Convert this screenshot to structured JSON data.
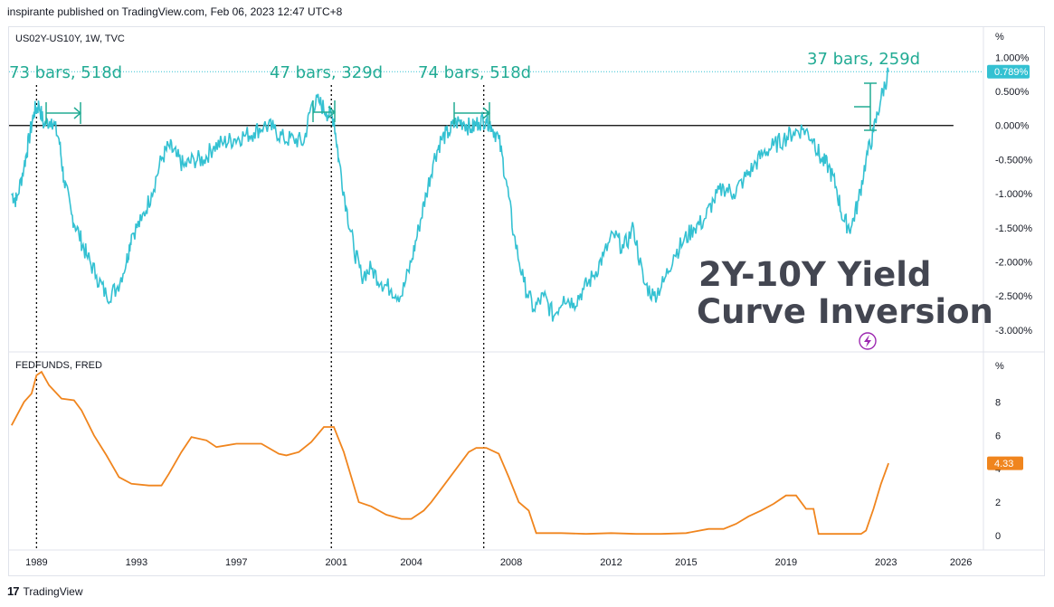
{
  "header": {
    "published": "inspirante published on TradingView.com, Feb 06, 2023 12:47 UTC+8"
  },
  "footer": {
    "logo": "17",
    "brand": "TradingView"
  },
  "top_pane": {
    "label": "US02Y-US10Y, 1W, TVC",
    "unit": "%",
    "last_value_label": "0.789%",
    "title_line1": "2Y-10Y Yield",
    "title_line2": "Curve Inversion",
    "annotations": [
      "73 bars, 518d",
      "47 bars, 329d",
      "74 bars, 518d",
      "37 bars, 259d"
    ]
  },
  "bottom_pane": {
    "label": "FEDFUNDS, FRED",
    "unit": "%",
    "last_value_label": "4.33"
  },
  "colors": {
    "spread": "#34c1d2",
    "fedfunds": "#f0851e",
    "annotation": "#22ab94",
    "zero_line": "#000000"
  },
  "chart_data": [
    {
      "type": "line",
      "title": "US02Y-US10Y, 1W, TVC",
      "ylabel": "%",
      "ylim": [
        -3.2,
        1.15
      ],
      "yticks": [
        1.0,
        0.5,
        0.0,
        -0.5,
        -1.0,
        -1.5,
        -2.0,
        -2.5,
        -3.0
      ],
      "ytick_labels": [
        "1.000%",
        "0.500%",
        "0.000%",
        "-0.500%",
        "-1.000%",
        "-1.500%",
        "-2.000%",
        "-2.500%",
        "-3.000%"
      ],
      "xlim": [
        1987.9,
        2026.9
      ],
      "xticks": [
        1989,
        1993,
        1997,
        2001,
        2004,
        2008,
        2012,
        2015,
        2019,
        2023,
        2026
      ],
      "reference_line": 0,
      "last_value": 0.789,
      "vertical_markers": [
        1989.0,
        2000.8,
        2006.9
      ],
      "series": [
        {
          "x": [
            1988.0,
            1988.2,
            1988.5,
            1988.7,
            1988.9,
            1989.1,
            1989.3,
            1989.6,
            1989.9,
            1990.1,
            1990.4,
            1990.7,
            1991.0,
            1991.4,
            1991.8,
            1992.2,
            1992.6,
            1992.8,
            1993.2,
            1993.6,
            1994.0,
            1994.3,
            1994.6,
            1994.9,
            1995.3,
            1995.7,
            1996.1,
            1996.5,
            1996.9,
            1997.3,
            1997.7,
            1998.1,
            1998.5,
            1998.9,
            1999.3,
            1999.7,
            2000.0,
            2000.3,
            2000.6,
            2000.9,
            2001.1,
            2001.4,
            2001.7,
            2002.0,
            2002.4,
            2002.8,
            2003.2,
            2003.6,
            2004.0,
            2004.3,
            2004.6,
            2004.9,
            2005.2,
            2005.5,
            2005.8,
            2006.1,
            2006.4,
            2006.7,
            2007.0,
            2007.2,
            2007.5,
            2007.8,
            2008.1,
            2008.5,
            2008.9,
            2009.3,
            2009.7,
            2010.1,
            2010.5,
            2010.9,
            2011.3,
            2011.7,
            2012.1,
            2012.5,
            2012.9,
            2013.3,
            2013.7,
            2014.1,
            2014.5,
            2014.9,
            2015.3,
            2015.7,
            2016.1,
            2016.5,
            2016.9,
            2017.3,
            2017.7,
            2018.1,
            2018.5,
            2018.9,
            2019.3,
            2019.7,
            2020.1,
            2020.4,
            2020.7,
            2021.0,
            2021.3,
            2021.6,
            2021.9,
            2022.2,
            2022.5,
            2022.8,
            2023.1
          ],
          "values": [
            -1.0,
            -1.1,
            -0.6,
            -0.2,
            0.2,
            0.3,
            0.0,
            0.1,
            -0.2,
            -0.8,
            -1.3,
            -1.6,
            -1.9,
            -2.2,
            -2.5,
            -2.4,
            -2.0,
            -1.6,
            -1.4,
            -1.0,
            -0.5,
            -0.3,
            -0.45,
            -0.6,
            -0.5,
            -0.5,
            -0.3,
            -0.25,
            -0.2,
            -0.15,
            -0.1,
            0.0,
            -0.05,
            -0.2,
            -0.2,
            -0.25,
            0.3,
            0.35,
            0.2,
            0.1,
            -0.5,
            -1.2,
            -1.8,
            -2.2,
            -2.1,
            -2.3,
            -2.4,
            -2.5,
            -2.0,
            -1.5,
            -1.0,
            -0.5,
            -0.2,
            -0.1,
            0.05,
            0.05,
            -0.05,
            0.05,
            0.1,
            0.0,
            -0.2,
            -0.8,
            -1.6,
            -2.3,
            -2.7,
            -2.5,
            -2.8,
            -2.5,
            -2.6,
            -2.4,
            -2.2,
            -1.9,
            -1.6,
            -1.8,
            -1.5,
            -2.3,
            -2.5,
            -2.3,
            -1.9,
            -1.7,
            -1.5,
            -1.4,
            -1.1,
            -0.9,
            -1.0,
            -0.8,
            -0.6,
            -0.4,
            -0.3,
            -0.2,
            -0.1,
            -0.05,
            -0.2,
            -0.5,
            -0.6,
            -0.9,
            -1.4,
            -1.5,
            -1.1,
            -0.5,
            -0.1,
            0.4,
            0.789
          ]
        }
      ]
    },
    {
      "type": "line",
      "title": "FEDFUNDS, FRED",
      "ylabel": "%",
      "ylim": [
        -0.7,
        10.4
      ],
      "yticks": [
        8,
        6,
        4,
        2,
        0
      ],
      "ytick_labels": [
        "8",
        "6",
        "4",
        "2",
        "0"
      ],
      "last_value": 4.33,
      "series": [
        {
          "x": [
            1988.0,
            1988.5,
            1988.8,
            1989.0,
            1989.2,
            1989.5,
            1990.0,
            1990.5,
            1990.8,
            1991.3,
            1991.8,
            1992.3,
            1992.8,
            1993.5,
            1994.0,
            1994.3,
            1994.8,
            1995.2,
            1995.8,
            1996.2,
            1997.0,
            1998.0,
            1998.7,
            1999.0,
            1999.5,
            2000.0,
            2000.5,
            2000.9,
            2001.3,
            2001.6,
            2001.9,
            2002.4,
            2003.0,
            2003.6,
            2004.0,
            2004.5,
            2004.8,
            2005.3,
            2005.8,
            2006.3,
            2006.6,
            2007.0,
            2007.5,
            2007.9,
            2008.3,
            2008.7,
            2009.0,
            2010.0,
            2011.0,
            2012.0,
            2013.0,
            2014.0,
            2015.0,
            2015.9,
            2016.5,
            2017.0,
            2017.5,
            2018.0,
            2018.5,
            2019.0,
            2019.4,
            2019.8,
            2020.1,
            2020.3,
            2020.6,
            2021.0,
            2021.5,
            2022.0,
            2022.2,
            2022.5,
            2022.8,
            2023.1
          ],
          "values": [
            6.6,
            8.0,
            8.5,
            9.6,
            9.8,
            9.0,
            8.2,
            8.1,
            7.5,
            6.0,
            4.8,
            3.5,
            3.1,
            3.0,
            3.0,
            3.7,
            5.0,
            5.9,
            5.7,
            5.3,
            5.5,
            5.5,
            4.9,
            4.8,
            5.0,
            5.6,
            6.5,
            6.5,
            5.0,
            3.5,
            2.0,
            1.75,
            1.25,
            1.0,
            1.0,
            1.5,
            2.0,
            3.0,
            4.0,
            5.0,
            5.25,
            5.25,
            4.9,
            3.5,
            2.0,
            1.5,
            0.15,
            0.15,
            0.1,
            0.15,
            0.1,
            0.1,
            0.15,
            0.4,
            0.4,
            0.7,
            1.15,
            1.5,
            1.9,
            2.4,
            2.4,
            1.6,
            1.6,
            0.1,
            0.1,
            0.1,
            0.1,
            0.1,
            0.3,
            1.6,
            3.1,
            4.33
          ]
        }
      ]
    }
  ]
}
